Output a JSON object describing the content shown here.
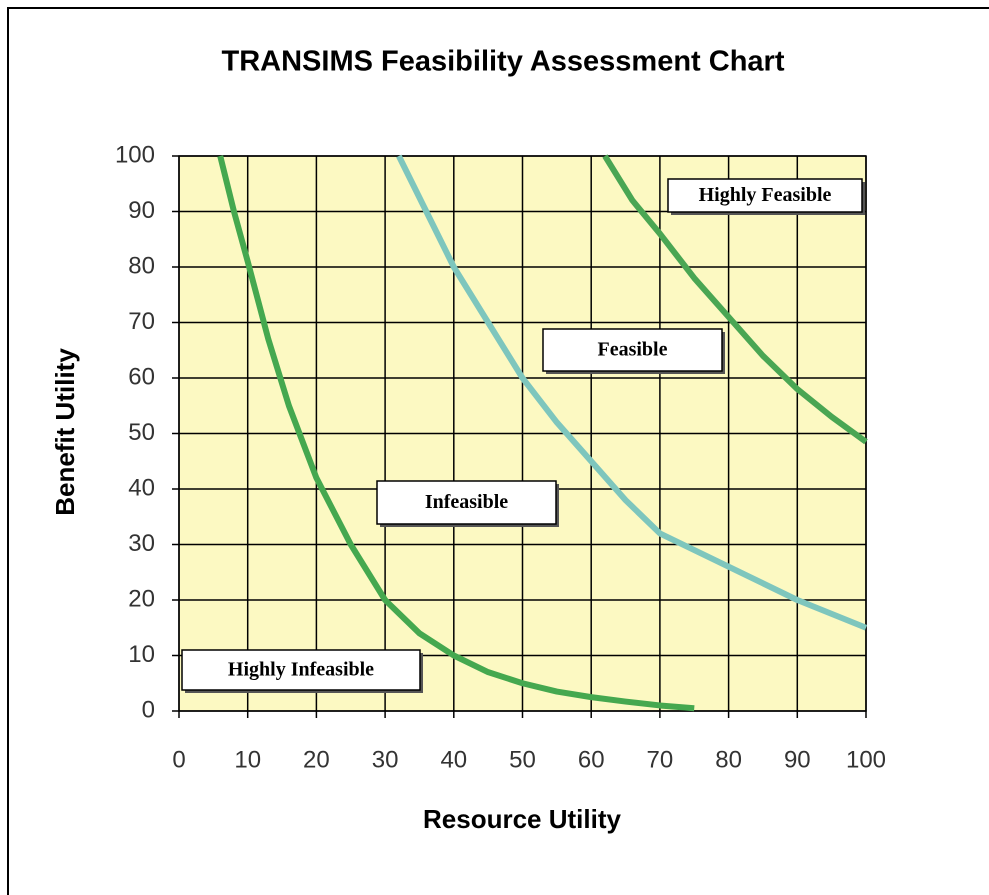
{
  "chart_data": {
    "type": "line",
    "title": "TRANSIMS Feasibility Assessment Chart",
    "x_label": "Resource Utility",
    "y_label": "Benefit Utility",
    "xlim": [
      0,
      100
    ],
    "ylim": [
      0,
      100
    ],
    "xticks": [
      0,
      10,
      20,
      30,
      40,
      50,
      60,
      70,
      80,
      90,
      100
    ],
    "yticks": [
      0,
      10,
      20,
      30,
      40,
      50,
      60,
      70,
      80,
      90,
      100
    ],
    "grid": true,
    "background": "#fcf9c2",
    "series": [
      {
        "color": "#45a84f",
        "x": [
          6,
          8,
          10,
          13,
          16,
          20,
          25,
          30,
          35,
          40,
          45,
          50,
          55,
          60,
          65,
          70,
          75
        ],
        "values": [
          100,
          90,
          81,
          67,
          55,
          42,
          30,
          20,
          14,
          10,
          7,
          5,
          3.5,
          2.5,
          1.7,
          1,
          0.5
        ]
      },
      {
        "color": "#7ec6bd",
        "x": [
          32,
          36,
          40,
          45,
          50,
          55,
          60,
          65,
          70,
          75,
          80,
          85,
          90,
          95,
          100
        ],
        "values": [
          100,
          90,
          80,
          70,
          60,
          52,
          45,
          38,
          32,
          29,
          26,
          23,
          20,
          17.5,
          15
        ]
      },
      {
        "color": "#4aa653",
        "x": [
          62,
          66,
          70,
          75,
          80,
          85,
          90,
          95,
          100
        ],
        "values": [
          100,
          92,
          86,
          78,
          71,
          64,
          58,
          53,
          48.5
        ]
      }
    ],
    "annotations": [
      "Highly Feasible",
      "Feasible",
      "Infeasible",
      "Highly Infeasible"
    ]
  }
}
